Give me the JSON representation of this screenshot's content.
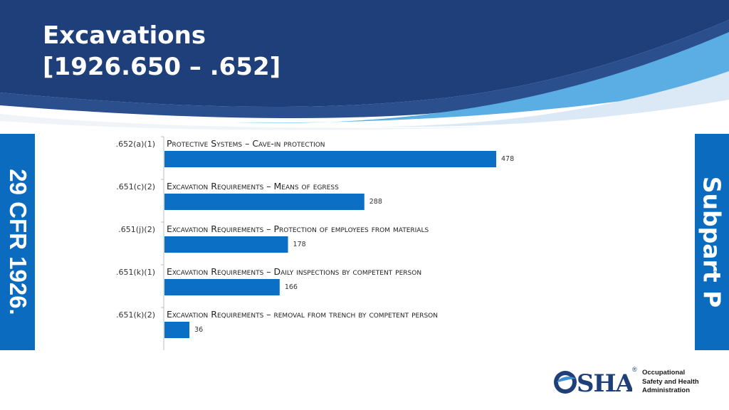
{
  "header": {
    "title_line1": "Excavations",
    "title_line2": "[1926.650 – .652]"
  },
  "left_tab": {
    "label": "29 CFR 1926."
  },
  "right_tab": {
    "label": "Subpart P"
  },
  "colors": {
    "banner_dark": "#1f3f7a",
    "banner_light": "#5aaee3",
    "tab_blue": "#0b6cbf",
    "bar_blue": "#0a6fc5"
  },
  "chart_data": {
    "type": "bar",
    "orientation": "horizontal",
    "categories": [
      ".652(a)(1)",
      ".651(c)(2)",
      ".651(j)(2)",
      ".651(k)(1)",
      ".651(k)(2)"
    ],
    "descriptions": [
      "Protective Systems – Cave-in protection",
      "Excavation Requirements – Means of egress",
      "Excavation Requirements – Protection of employees from materials",
      "Excavation Requirements – Daily inspections by competent person",
      "Excavation Requirements – removal from trench by competent person"
    ],
    "values": [
      478,
      288,
      178,
      166,
      36
    ],
    "title": "",
    "xlabel": "",
    "ylabel": "",
    "xlim": [
      0,
      478
    ],
    "grid": false,
    "legend": "none"
  },
  "logo": {
    "name": "OSHA",
    "registered": "®",
    "lines": [
      "Occupational",
      "Safety and Health",
      "Administration"
    ]
  }
}
